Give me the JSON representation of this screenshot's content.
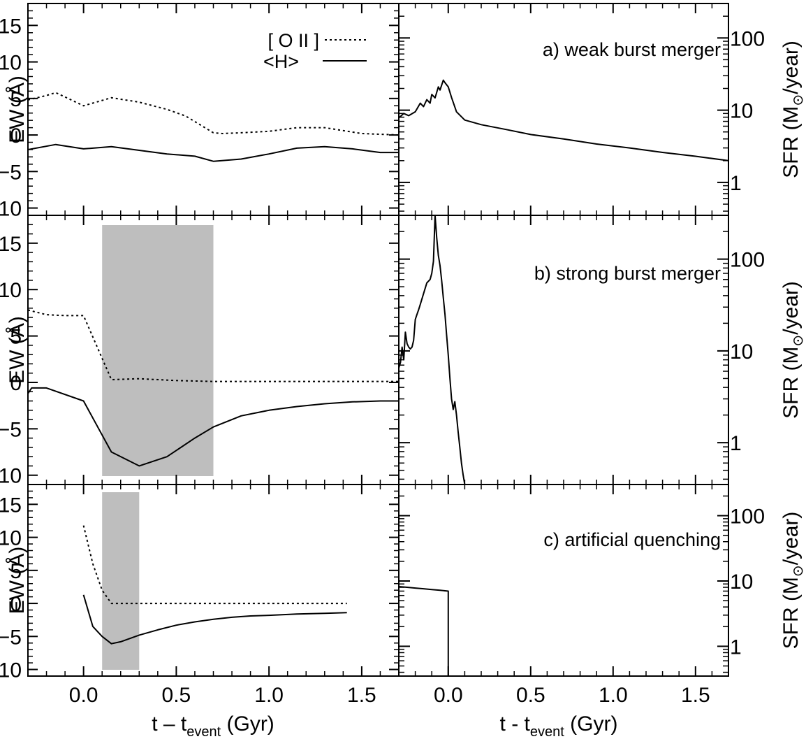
{
  "figure": {
    "ew_axis_label": "EW (Å)",
    "sfr_axis_label": "SFR (M",
    "sfr_axis_label_tail": "/year)",
    "left_x_label": "t – t",
    "right_x_label": "t - t",
    "x_label_subscript": "event",
    "x_label_unit": " (Gyr)",
    "legend_oii": "[ O II ]",
    "legend_h": "<H>",
    "ew_ticks": [
      "15",
      "10",
      "5",
      "0",
      "−5",
      "−10"
    ],
    "sfr_ticks": [
      "100",
      "10",
      "1"
    ],
    "x_ticks": [
      "0.0",
      "0.5",
      "1.0",
      "1.5"
    ],
    "right_x_ticks_b": [
      "0.0"
    ]
  },
  "chart_data": [
    {
      "type": "line",
      "panel": "a) weak burst merger",
      "side": "EW",
      "ylabel": "EW (Å)",
      "xlim": [
        -0.3,
        1.7
      ],
      "ylim": [
        -11,
        18
      ],
      "series": [
        {
          "name": "[ O II ]",
          "style": "dotted",
          "x": [
            -0.3,
            -0.2,
            -0.15,
            -0.1,
            0.0,
            0.15,
            0.3,
            0.45,
            0.55,
            0.7,
            0.75,
            0.85,
            1.0,
            1.15,
            1.3,
            1.5,
            1.7
          ],
          "y": [
            4.8,
            5.4,
            5.8,
            5.2,
            4.0,
            5.1,
            4.5,
            3.5,
            2.6,
            0.3,
            0.2,
            0.3,
            0.5,
            1.0,
            1.0,
            0.2,
            0.0
          ]
        },
        {
          "name": "<H>",
          "style": "solid",
          "x": [
            -0.3,
            -0.15,
            0.0,
            0.15,
            0.3,
            0.45,
            0.6,
            0.7,
            0.85,
            1.0,
            1.15,
            1.3,
            1.45,
            1.6,
            1.7
          ],
          "y": [
            -2.0,
            -1.3,
            -1.9,
            -1.6,
            -2.1,
            -2.6,
            -2.9,
            -3.6,
            -3.3,
            -2.6,
            -1.8,
            -1.6,
            -1.9,
            -2.4,
            -2.4
          ]
        }
      ],
      "shaded_intervals": []
    },
    {
      "type": "line",
      "panel": "a) weak burst merger",
      "side": "SFR",
      "ylabel": "SFR (M⊙/year)",
      "yscale": "log",
      "xlim": [
        -0.3,
        1.7
      ],
      "ylim": [
        0.35,
        300
      ],
      "series": [
        {
          "name": "SFR",
          "style": "solid",
          "x": [
            -0.3,
            -0.27,
            -0.24,
            -0.2,
            -0.17,
            -0.15,
            -0.13,
            -0.11,
            -0.1,
            -0.08,
            -0.06,
            -0.05,
            -0.03,
            -0.02,
            0.0,
            0.02,
            0.05,
            0.1,
            0.2,
            0.35,
            0.5,
            0.7,
            0.9,
            1.1,
            1.3,
            1.5,
            1.7
          ],
          "y": [
            7.8,
            9.0,
            8.4,
            9.5,
            12.5,
            11.2,
            14.0,
            12.5,
            16.5,
            14.8,
            21.0,
            19.0,
            26.0,
            24.0,
            21.0,
            15.0,
            9.5,
            7.3,
            6.3,
            5.4,
            4.6,
            4.0,
            3.4,
            3.0,
            2.6,
            2.3,
            2.0
          ]
        }
      ],
      "shaded_intervals": []
    },
    {
      "type": "line",
      "panel": "b) strong burst merger",
      "side": "EW",
      "ylabel": "EW (Å)",
      "xlim": [
        -0.3,
        1.7
      ],
      "ylim": [
        -11,
        18
      ],
      "series": [
        {
          "name": "[ O II ]",
          "style": "dotted",
          "x": [
            -0.3,
            -0.2,
            -0.1,
            0.0,
            0.15,
            0.3,
            0.5,
            0.7,
            1.0,
            1.3,
            1.7
          ],
          "y": [
            7.8,
            7.3,
            7.2,
            7.2,
            0.3,
            0.4,
            0.2,
            0.1,
            0.1,
            0.1,
            0.1
          ]
        },
        {
          "name": "<H>",
          "style": "solid",
          "x": [
            -0.3,
            -0.28,
            -0.2,
            0.0,
            0.15,
            0.3,
            0.45,
            0.6,
            0.7,
            0.85,
            1.0,
            1.15,
            1.3,
            1.45,
            1.6,
            1.7
          ],
          "y": [
            -1.2,
            -0.6,
            -0.6,
            -2.0,
            -7.5,
            -9.0,
            -8.0,
            -6.0,
            -4.8,
            -3.6,
            -3.0,
            -2.6,
            -2.3,
            -2.1,
            -2.0,
            -2.0
          ]
        }
      ],
      "shaded_intervals": [
        [
          0.1,
          0.7
        ]
      ]
    },
    {
      "type": "line",
      "panel": "b) strong burst merger",
      "side": "SFR",
      "ylabel": "SFR (M⊙/year)",
      "yscale": "log",
      "xlim": [
        -0.3,
        1.7
      ],
      "ylim": [
        0.35,
        300
      ],
      "series": [
        {
          "name": "SFR",
          "style": "solid",
          "x": [
            -0.3,
            -0.29,
            -0.28,
            -0.27,
            -0.26,
            -0.25,
            -0.24,
            -0.23,
            -0.22,
            -0.21,
            -0.2,
            -0.19,
            -0.18,
            -0.17,
            -0.15,
            -0.13,
            -0.11,
            -0.1,
            -0.09,
            -0.08,
            -0.07,
            -0.06,
            -0.05,
            -0.04,
            -0.03,
            -0.02,
            -0.01,
            0.0,
            0.01,
            0.02,
            0.03,
            0.04,
            0.05,
            0.06,
            0.07,
            0.08,
            0.09,
            0.1
          ],
          "y": [
            6.5,
            7.5,
            11.0,
            8.0,
            16.0,
            12.0,
            11.0,
            10.5,
            11.0,
            13.0,
            22.0,
            25.0,
            28.0,
            32.0,
            42.0,
            55.0,
            60.0,
            70.0,
            95.0,
            300.0,
            170.0,
            110.0,
            85.0,
            58.0,
            38.0,
            25.0,
            15.0,
            9.0,
            5.0,
            3.0,
            2.3,
            2.8,
            2.0,
            1.3,
            0.9,
            0.6,
            0.45,
            0.35
          ]
        }
      ],
      "shaded_intervals": []
    },
    {
      "type": "line",
      "panel": "c) artificial quenching",
      "side": "EW",
      "ylabel": "EW (Å)",
      "xlim": [
        -0.3,
        1.7
      ],
      "ylim": [
        -11,
        18
      ],
      "series": [
        {
          "name": "[ O II ]",
          "style": "dotted",
          "x": [
            0.0,
            0.05,
            0.1,
            0.15,
            0.3,
            0.5,
            0.8,
            1.0,
            1.2,
            1.42
          ],
          "y": [
            11.8,
            6.0,
            2.0,
            0.0,
            0.0,
            0.0,
            0.0,
            0.0,
            0.0,
            0.0
          ]
        },
        {
          "name": "<H>",
          "style": "solid",
          "x": [
            0.0,
            0.05,
            0.1,
            0.15,
            0.2,
            0.3,
            0.4,
            0.5,
            0.6,
            0.7,
            0.8,
            0.9,
            1.0,
            1.15,
            1.3,
            1.42
          ],
          "y": [
            1.3,
            -3.5,
            -5.0,
            -6.1,
            -5.8,
            -4.8,
            -4.0,
            -3.3,
            -2.8,
            -2.4,
            -2.1,
            -1.9,
            -1.8,
            -1.6,
            -1.5,
            -1.4
          ]
        }
      ],
      "shaded_intervals": [
        [
          0.1,
          0.3
        ]
      ]
    },
    {
      "type": "line",
      "panel": "c) artificial quenching",
      "side": "SFR",
      "ylabel": "SFR (M⊙/year)",
      "yscale": "log",
      "xlim": [
        -0.3,
        1.7
      ],
      "ylim": [
        0.35,
        300
      ],
      "series": [
        {
          "name": "SFR",
          "style": "solid",
          "x": [
            -0.3,
            -0.25,
            -0.2,
            -0.15,
            -0.1,
            -0.05,
            0.0,
            0.0,
            0.0
          ],
          "y": [
            8.2,
            8.0,
            7.8,
            7.6,
            7.4,
            7.2,
            7.0,
            1.0,
            0.35
          ]
        }
      ],
      "shaded_intervals": []
    }
  ]
}
